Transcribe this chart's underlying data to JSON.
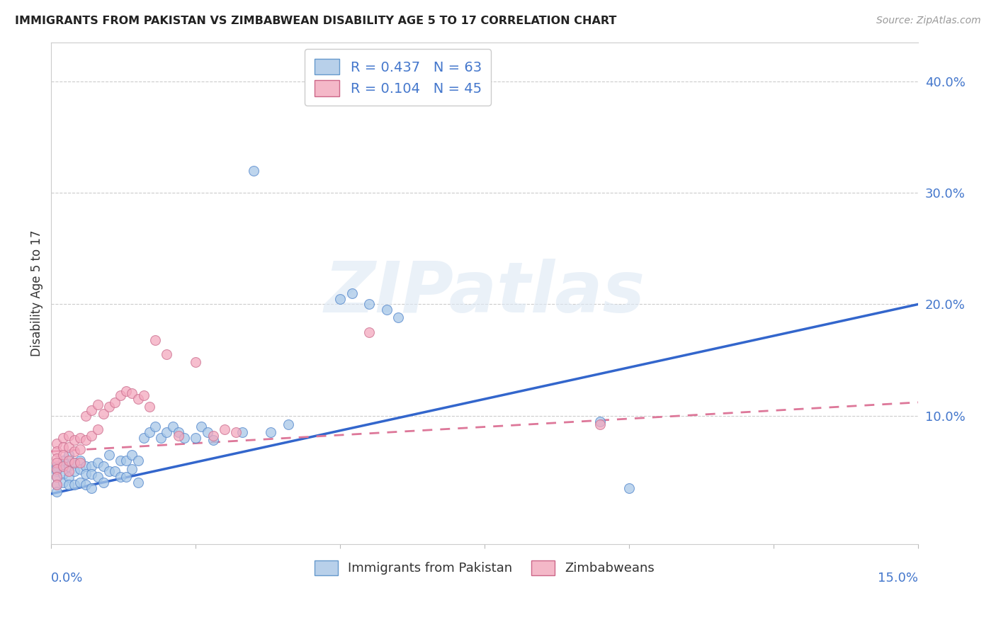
{
  "title": "IMMIGRANTS FROM PAKISTAN VS ZIMBABWEAN DISABILITY AGE 5 TO 17 CORRELATION CHART",
  "source": "Source: ZipAtlas.com",
  "ylabel": "Disability Age 5 to 17",
  "ytick_labels": [
    "10.0%",
    "20.0%",
    "30.0%",
    "40.0%"
  ],
  "ytick_values": [
    0.1,
    0.2,
    0.3,
    0.4
  ],
  "xmin": 0.0,
  "xmax": 0.15,
  "ymin": -0.015,
  "ymax": 0.435,
  "legend1_label": "R = 0.437   N = 63",
  "legend2_label": "R = 0.104   N = 45",
  "legend1_facecolor": "#b8d0ea",
  "legend2_facecolor": "#f4b8c8",
  "legend1_edgecolor": "#6699cc",
  "legend2_edgecolor": "#cc6688",
  "watermark": "ZIPatlas",
  "pakistan_facecolor": "#a8c8e8",
  "pakistan_edgecolor": "#5588cc",
  "zimbabwe_facecolor": "#f4a8be",
  "zimbabwe_edgecolor": "#cc7090",
  "pakistan_line_color": "#3366cc",
  "zimbabwe_line_color": "#dd7799",
  "pakistan_line": [
    0.0,
    0.03,
    0.15,
    0.2
  ],
  "zimbabwe_line": [
    0.0,
    0.068,
    0.15,
    0.112
  ],
  "pakistan_x": [
    0.001,
    0.001,
    0.001,
    0.001,
    0.001,
    0.002,
    0.002,
    0.002,
    0.002,
    0.003,
    0.003,
    0.003,
    0.003,
    0.004,
    0.004,
    0.004,
    0.005,
    0.005,
    0.005,
    0.006,
    0.006,
    0.006,
    0.007,
    0.007,
    0.007,
    0.008,
    0.008,
    0.009,
    0.009,
    0.01,
    0.01,
    0.011,
    0.012,
    0.012,
    0.013,
    0.013,
    0.014,
    0.014,
    0.015,
    0.015,
    0.016,
    0.017,
    0.018,
    0.019,
    0.02,
    0.021,
    0.022,
    0.023,
    0.025,
    0.026,
    0.027,
    0.028,
    0.033,
    0.035,
    0.038,
    0.041,
    0.05,
    0.052,
    0.055,
    0.058,
    0.06,
    0.095,
    0.1
  ],
  "pakistan_y": [
    0.055,
    0.05,
    0.045,
    0.038,
    0.032,
    0.06,
    0.055,
    0.048,
    0.04,
    0.065,
    0.055,
    0.045,
    0.038,
    0.058,
    0.05,
    0.038,
    0.06,
    0.052,
    0.04,
    0.055,
    0.048,
    0.038,
    0.055,
    0.048,
    0.035,
    0.058,
    0.045,
    0.055,
    0.04,
    0.065,
    0.05,
    0.05,
    0.06,
    0.045,
    0.06,
    0.045,
    0.065,
    0.052,
    0.06,
    0.04,
    0.08,
    0.085,
    0.09,
    0.08,
    0.085,
    0.09,
    0.085,
    0.08,
    0.08,
    0.09,
    0.085,
    0.078,
    0.085,
    0.32,
    0.085,
    0.092,
    0.205,
    0.21,
    0.2,
    0.195,
    0.188,
    0.095,
    0.035
  ],
  "zimbabwe_x": [
    0.001,
    0.001,
    0.001,
    0.001,
    0.001,
    0.001,
    0.001,
    0.002,
    0.002,
    0.002,
    0.002,
    0.003,
    0.003,
    0.003,
    0.003,
    0.004,
    0.004,
    0.004,
    0.005,
    0.005,
    0.005,
    0.006,
    0.006,
    0.007,
    0.007,
    0.008,
    0.008,
    0.009,
    0.01,
    0.011,
    0.012,
    0.013,
    0.014,
    0.015,
    0.016,
    0.017,
    0.018,
    0.02,
    0.022,
    0.025,
    0.028,
    0.03,
    0.032,
    0.055,
    0.095
  ],
  "zimbabwe_y": [
    0.075,
    0.068,
    0.062,
    0.058,
    0.052,
    0.045,
    0.038,
    0.08,
    0.072,
    0.065,
    0.055,
    0.082,
    0.072,
    0.06,
    0.05,
    0.078,
    0.068,
    0.058,
    0.08,
    0.07,
    0.058,
    0.1,
    0.078,
    0.105,
    0.082,
    0.11,
    0.088,
    0.102,
    0.108,
    0.112,
    0.118,
    0.122,
    0.12,
    0.115,
    0.118,
    0.108,
    0.168,
    0.155,
    0.082,
    0.148,
    0.082,
    0.088,
    0.085,
    0.175,
    0.092
  ]
}
